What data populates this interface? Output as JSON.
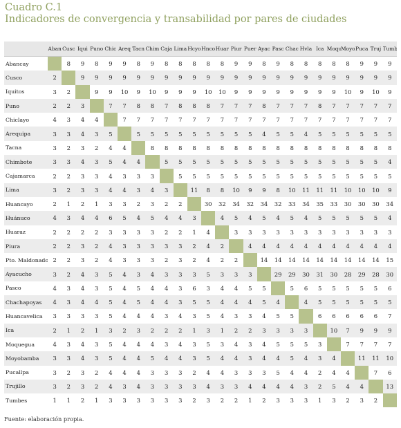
{
  "title": "Cuadro C.1",
  "subtitle": "Indicadores de convergencia y transabilidad por pares de ciudades",
  "columns": [
    "Aban",
    "Cusc",
    "Iqui",
    "Puno",
    "Chic",
    "Areq",
    "Tacn",
    "Chim",
    "Caja",
    "Lima",
    "Hcyo",
    "Hnco",
    "Huar",
    "Piur",
    "Puer",
    "Ayac",
    "Pasc",
    "Chac",
    "Hvla",
    "Ica",
    "Moqu",
    "Moyo",
    "Puca",
    "Truj",
    "Tumb"
  ],
  "rows": [
    {
      "city": "Abancay",
      "values": [
        "",
        "8",
        "9",
        "8",
        "9",
        "9",
        "8",
        "9",
        "8",
        "8",
        "8",
        "8",
        "8",
        "9",
        "9",
        "8",
        "9",
        "8",
        "8",
        "8",
        "8",
        "8",
        "9",
        "9",
        "9"
      ]
    },
    {
      "city": "Cusco",
      "values": [
        "2",
        "",
        "9",
        "9",
        "9",
        "9",
        "9",
        "9",
        "9",
        "9",
        "9",
        "9",
        "9",
        "9",
        "9",
        "9",
        "9",
        "9",
        "9",
        "9",
        "9",
        "9",
        "9",
        "9",
        "9"
      ]
    },
    {
      "city": "Iquitos",
      "values": [
        "3",
        "2",
        "",
        "9",
        "9",
        "10",
        "9",
        "10",
        "9",
        "9",
        "9",
        "10",
        "10",
        "9",
        "9",
        "9",
        "9",
        "9",
        "9",
        "9",
        "9",
        "10",
        "9",
        "10",
        "9"
      ]
    },
    {
      "city": "Puno",
      "values": [
        "2",
        "2",
        "3",
        "",
        "7",
        "7",
        "8",
        "8",
        "7",
        "8",
        "8",
        "8",
        "7",
        "7",
        "7",
        "8",
        "7",
        "7",
        "7",
        "8",
        "7",
        "7",
        "7",
        "7",
        "7"
      ]
    },
    {
      "city": "Chiclayo",
      "values": [
        "4",
        "3",
        "4",
        "4",
        "",
        "7",
        "7",
        "7",
        "7",
        "7",
        "7",
        "7",
        "7",
        "7",
        "7",
        "7",
        "7",
        "7",
        "7",
        "7",
        "7",
        "7",
        "7",
        "7",
        "7"
      ]
    },
    {
      "city": "Arequipa",
      "values": [
        "3",
        "3",
        "4",
        "3",
        "5",
        "",
        "5",
        "5",
        "5",
        "5",
        "5",
        "5",
        "5",
        "5",
        "5",
        "4",
        "5",
        "5",
        "4",
        "5",
        "5",
        "5",
        "5",
        "5",
        "5"
      ]
    },
    {
      "city": "Tacna",
      "values": [
        "3",
        "2",
        "3",
        "2",
        "4",
        "4",
        "",
        "8",
        "8",
        "8",
        "8",
        "8",
        "8",
        "8",
        "8",
        "8",
        "8",
        "8",
        "8",
        "8",
        "8",
        "8",
        "8",
        "8",
        "8"
      ]
    },
    {
      "city": "Chimbote",
      "values": [
        "3",
        "3",
        "4",
        "3",
        "5",
        "4",
        "4",
        "",
        "5",
        "5",
        "5",
        "5",
        "5",
        "5",
        "5",
        "5",
        "5",
        "5",
        "5",
        "5",
        "5",
        "5",
        "5",
        "5",
        "4"
      ]
    },
    {
      "city": "Cajamarca",
      "values": [
        "2",
        "2",
        "3",
        "3",
        "4",
        "3",
        "3",
        "3",
        "",
        "5",
        "5",
        "5",
        "5",
        "5",
        "5",
        "5",
        "5",
        "5",
        "5",
        "5",
        "5",
        "5",
        "5",
        "5",
        "5"
      ]
    },
    {
      "city": "Lima",
      "values": [
        "3",
        "2",
        "3",
        "3",
        "4",
        "4",
        "3",
        "4",
        "3",
        "",
        "11",
        "8",
        "8",
        "10",
        "9",
        "9",
        "8",
        "10",
        "11",
        "11",
        "11",
        "10",
        "10",
        "10",
        "9"
      ]
    },
    {
      "city": "Huancayo",
      "values": [
        "2",
        "1",
        "2",
        "1",
        "3",
        "3",
        "2",
        "3",
        "2",
        "2",
        "",
        "30",
        "32",
        "34",
        "32",
        "34",
        "32",
        "33",
        "34",
        "35",
        "33",
        "30",
        "30",
        "30",
        "34"
      ]
    },
    {
      "city": "Huánuco",
      "values": [
        "4",
        "3",
        "4",
        "4",
        "6",
        "5",
        "4",
        "5",
        "4",
        "4",
        "3",
        "",
        "4",
        "5",
        "4",
        "5",
        "4",
        "5",
        "4",
        "5",
        "5",
        "5",
        "5",
        "5",
        "4"
      ]
    },
    {
      "city": "Huaraz",
      "values": [
        "2",
        "2",
        "2",
        "2",
        "3",
        "3",
        "3",
        "3",
        "2",
        "2",
        "1",
        "4",
        "",
        "3",
        "3",
        "3",
        "3",
        "3",
        "3",
        "3",
        "3",
        "3",
        "3",
        "3",
        "3"
      ]
    },
    {
      "city": "Piura",
      "values": [
        "2",
        "2",
        "3",
        "2",
        "4",
        "3",
        "3",
        "3",
        "3",
        "3",
        "2",
        "4",
        "2",
        "",
        "4",
        "4",
        "4",
        "4",
        "4",
        "4",
        "4",
        "4",
        "4",
        "4",
        "4"
      ]
    },
    {
      "city": "Pto. Maldonado",
      "values": [
        "2",
        "2",
        "3",
        "2",
        "4",
        "3",
        "3",
        "3",
        "2",
        "3",
        "2",
        "4",
        "2",
        "2",
        "",
        "14",
        "14",
        "14",
        "14",
        "14",
        "14",
        "14",
        "14",
        "14",
        "15"
      ]
    },
    {
      "city": "Ayacucho",
      "values": [
        "3",
        "2",
        "4",
        "3",
        "5",
        "4",
        "3",
        "4",
        "3",
        "3",
        "3",
        "5",
        "3",
        "3",
        "3",
        "",
        "29",
        "29",
        "30",
        "31",
        "30",
        "28",
        "29",
        "28",
        "30"
      ]
    },
    {
      "city": "Pasco",
      "values": [
        "4",
        "3",
        "4",
        "3",
        "5",
        "4",
        "5",
        "4",
        "4",
        "3",
        "6",
        "3",
        "4",
        "4",
        "5",
        "5",
        "",
        "5",
        "6",
        "5",
        "5",
        "5",
        "5",
        "5",
        "6"
      ]
    },
    {
      "city": "Chachapoyas",
      "values": [
        "4",
        "3",
        "4",
        "4",
        "5",
        "4",
        "5",
        "4",
        "4",
        "3",
        "5",
        "5",
        "4",
        "4",
        "4",
        "5",
        "4",
        "",
        "4",
        "5",
        "5",
        "5",
        "5",
        "5",
        "5"
      ]
    },
    {
      "city": "Huancavelica",
      "values": [
        "3",
        "3",
        "3",
        "3",
        "5",
        "4",
        "4",
        "4",
        "3",
        "4",
        "3",
        "5",
        "4",
        "3",
        "3",
        "4",
        "5",
        "5",
        "",
        "6",
        "6",
        "6",
        "6",
        "6",
        "7"
      ]
    },
    {
      "city": "Ica",
      "values": [
        "2",
        "1",
        "2",
        "1",
        "3",
        "2",
        "3",
        "2",
        "2",
        "2",
        "1",
        "3",
        "1",
        "2",
        "2",
        "3",
        "3",
        "3",
        "3",
        "",
        "10",
        "7",
        "9",
        "9",
        "9"
      ]
    },
    {
      "city": "Moquegua",
      "values": [
        "4",
        "3",
        "4",
        "3",
        "5",
        "4",
        "4",
        "4",
        "3",
        "4",
        "3",
        "5",
        "3",
        "4",
        "3",
        "4",
        "5",
        "5",
        "5",
        "3",
        "",
        "7",
        "7",
        "7",
        "7"
      ]
    },
    {
      "city": "Moyobamba",
      "values": [
        "3",
        "3",
        "4",
        "3",
        "5",
        "4",
        "4",
        "5",
        "4",
        "4",
        "3",
        "5",
        "4",
        "4",
        "3",
        "4",
        "4",
        "5",
        "4",
        "3",
        "4",
        "",
        "11",
        "11",
        "10"
      ]
    },
    {
      "city": "Pucallpa",
      "values": [
        "3",
        "2",
        "3",
        "2",
        "4",
        "4",
        "4",
        "3",
        "3",
        "3",
        "2",
        "4",
        "4",
        "3",
        "3",
        "3",
        "5",
        "4",
        "4",
        "2",
        "4",
        "4",
        "",
        "7",
        "6"
      ]
    },
    {
      "city": "Trujillo",
      "values": [
        "3",
        "2",
        "3",
        "2",
        "4",
        "3",
        "4",
        "3",
        "3",
        "3",
        "3",
        "4",
        "3",
        "3",
        "4",
        "4",
        "4",
        "4",
        "3",
        "2",
        "5",
        "4",
        "4",
        "",
        "13"
      ]
    },
    {
      "city": "Tumbes",
      "values": [
        "1",
        "1",
        "2",
        "1",
        "3",
        "3",
        "3",
        "3",
        "3",
        "3",
        "2",
        "3",
        "2",
        "2",
        "1",
        "2",
        "3",
        "3",
        "3",
        "1",
        "3",
        "2",
        "3",
        "2",
        ""
      ]
    }
  ],
  "source": "Fuente: elaboración propia.",
  "colors": {
    "title": "#8fa05e",
    "diagonal": "#b7c28d",
    "band": "#ececec",
    "header": "#e7e7e7"
  }
}
